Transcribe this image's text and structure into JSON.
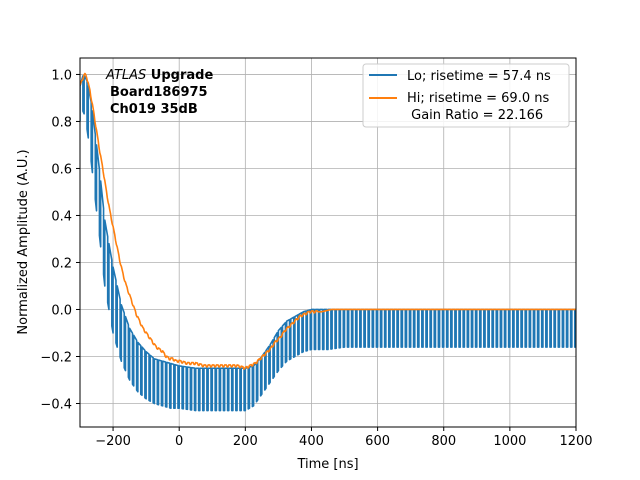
{
  "chart_data": {
    "type": "line",
    "xlabel": "Time [ns]",
    "ylabel": "Normalized Amplitude (A.U.)",
    "xlim": [
      -300,
      1200
    ],
    "ylim": [
      -0.5,
      1.07
    ],
    "xticks": [
      -200,
      0,
      200,
      400,
      600,
      800,
      1000,
      1200
    ],
    "xtick_labels": [
      "−200",
      "0",
      "200",
      "400",
      "600",
      "800",
      "1000",
      "1200"
    ],
    "yticks": [
      -0.4,
      -0.2,
      0.0,
      0.2,
      0.4,
      0.6,
      0.8,
      1.0
    ],
    "ytick_labels": [
      "−0.4",
      "−0.2",
      "0.0",
      "0.2",
      "0.4",
      "0.6",
      "0.8",
      "1.0"
    ],
    "grid": true,
    "legend_position": "top-right",
    "annotation": {
      "line1_italic": "ATLAS",
      "line1_bold": " Upgrade",
      "line2": "Board186975",
      "line3": "Ch019 35dB"
    },
    "series": [
      {
        "name": "Lo; risetime = 57.4 ns",
        "color": "#1f77b4",
        "style": "sampled-sawtooth",
        "period_ns": 12.5,
        "upper_x": [
          -300,
          -290,
          -280,
          -270,
          -260,
          -250,
          -240,
          -225,
          -200,
          -175,
          -150,
          -125,
          -100,
          -75,
          -50,
          -25,
          0,
          50,
          100,
          150,
          200,
          225,
          250,
          275,
          300,
          325,
          350,
          375,
          400,
          450,
          500,
          600,
          700,
          800,
          900,
          1000,
          1100,
          1200
        ],
        "upper_y": [
          0.95,
          1.0,
          0.98,
          0.92,
          0.82,
          0.7,
          0.58,
          0.38,
          0.18,
          0.02,
          -0.08,
          -0.14,
          -0.18,
          -0.21,
          -0.22,
          -0.23,
          -0.24,
          -0.25,
          -0.25,
          -0.25,
          -0.25,
          -0.24,
          -0.2,
          -0.15,
          -0.09,
          -0.05,
          -0.03,
          -0.01,
          0.0,
          0.0,
          0.0,
          0.0,
          0.0,
          0.0,
          0.0,
          0.0,
          0.0,
          0.0
        ],
        "lower_x": [
          -300,
          -290,
          -280,
          -270,
          -260,
          -250,
          -240,
          -225,
          -200,
          -175,
          -150,
          -125,
          -100,
          -75,
          -50,
          -25,
          0,
          50,
          100,
          150,
          200,
          225,
          250,
          275,
          300,
          325,
          350,
          375,
          400,
          450,
          500,
          600,
          700,
          800,
          900,
          1000,
          1100,
          1200
        ],
        "lower_y": [
          0.8,
          0.85,
          0.78,
          0.68,
          0.55,
          0.42,
          0.3,
          0.1,
          -0.1,
          -0.22,
          -0.3,
          -0.35,
          -0.38,
          -0.4,
          -0.41,
          -0.42,
          -0.42,
          -0.43,
          -0.43,
          -0.43,
          -0.43,
          -0.41,
          -0.36,
          -0.31,
          -0.26,
          -0.22,
          -0.2,
          -0.18,
          -0.17,
          -0.17,
          -0.16,
          -0.16,
          -0.16,
          -0.16,
          -0.16,
          -0.16,
          -0.16,
          -0.16
        ]
      },
      {
        "name": "Hi; risetime = 69.0 ns",
        "name_line2": " Gain Ratio = 22.166",
        "color": "#ff7f0e",
        "style": "line-with-ripple",
        "x": [
          -300,
          -290,
          -285,
          -280,
          -270,
          -260,
          -250,
          -240,
          -230,
          -220,
          -210,
          -200,
          -190,
          -180,
          -170,
          -160,
          -150,
          -140,
          -130,
          -120,
          -110,
          -100,
          -90,
          -80,
          -70,
          -60,
          -50,
          -40,
          -30,
          -20,
          -10,
          0,
          25,
          50,
          75,
          100,
          125,
          150,
          175,
          200,
          215,
          230,
          245,
          260,
          275,
          290,
          305,
          320,
          335,
          350,
          365,
          380,
          395,
          410,
          430,
          460,
          500,
          600,
          700,
          800,
          900,
          1000,
          1100,
          1200
        ],
        "y": [
          0.95,
          0.99,
          1.0,
          0.99,
          0.93,
          0.85,
          0.76,
          0.67,
          0.59,
          0.5,
          0.42,
          0.35,
          0.28,
          0.21,
          0.15,
          0.1,
          0.06,
          0.02,
          -0.02,
          -0.05,
          -0.08,
          -0.1,
          -0.12,
          -0.14,
          -0.16,
          -0.17,
          -0.18,
          -0.2,
          -0.21,
          -0.21,
          -0.22,
          -0.22,
          -0.23,
          -0.23,
          -0.24,
          -0.24,
          -0.24,
          -0.24,
          -0.24,
          -0.25,
          -0.24,
          -0.23,
          -0.21,
          -0.19,
          -0.17,
          -0.14,
          -0.12,
          -0.09,
          -0.07,
          -0.05,
          -0.03,
          -0.02,
          -0.01,
          -0.01,
          -0.01,
          0.0,
          0.0,
          0.0,
          0.0,
          0.0,
          0.0,
          0.0,
          0.0,
          0.0
        ]
      }
    ]
  }
}
